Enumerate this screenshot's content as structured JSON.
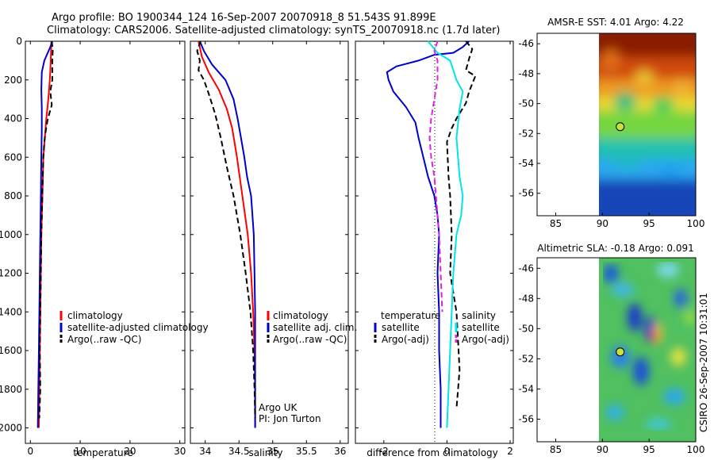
{
  "header": {
    "line1": "Argo profile: BO 1900344_124 16-Sep-2007 20070918_8 51.543S 91.899E",
    "line2": "Climatology: CARS2006. Satellite-adjusted climatology: synTS_20070918.nc (1.7d later)"
  },
  "side_stamp": "CSIRO 26-Sep-2007 10:31:01",
  "colors": {
    "climatology": "#ff0000",
    "satellite": "#0000cc",
    "argo": "#000000",
    "sat_salinity": "#00e5e5",
    "argo_adj_sal": "#e020e0"
  },
  "chart_data": [
    {
      "type": "line",
      "id": "temperature",
      "xlabel": "temperature",
      "ylabel": "",
      "xlim": [
        -1,
        31
      ],
      "ylim": [
        0,
        2080
      ],
      "xticks": [
        0,
        10,
        20,
        30
      ],
      "yticks": [
        0,
        200,
        400,
        600,
        800,
        1000,
        1200,
        1400,
        1600,
        1800,
        2000
      ],
      "legend": [
        "climatology",
        "satellite-adjusted climatology",
        "Argo(..raw -QC)"
      ],
      "series": [
        {
          "name": "climatology",
          "color": "#ff0000",
          "dash": false,
          "points": [
            [
              4.2,
              0
            ],
            [
              4.1,
              100
            ],
            [
              3.9,
              200
            ],
            [
              3.6,
              300
            ],
            [
              3.2,
              400
            ],
            [
              2.9,
              500
            ],
            [
              2.6,
              600
            ],
            [
              2.4,
              800
            ],
            [
              2.2,
              1000
            ],
            [
              2.1,
              1200
            ],
            [
              2.0,
              1400
            ],
            [
              1.9,
              1600
            ],
            [
              1.8,
              1800
            ],
            [
              1.7,
              2000
            ]
          ]
        },
        {
          "name": "satellite-adjusted climatology",
          "color": "#0000cc",
          "dash": false,
          "points": [
            [
              4.4,
              0
            ],
            [
              4.0,
              30
            ],
            [
              2.8,
              100
            ],
            [
              2.3,
              160
            ],
            [
              2.2,
              250
            ],
            [
              2.3,
              350
            ],
            [
              2.3,
              450
            ],
            [
              2.2,
              600
            ],
            [
              2.1,
              800
            ],
            [
              2.0,
              1000
            ],
            [
              1.9,
              1200
            ],
            [
              1.8,
              1400
            ],
            [
              1.7,
              1600
            ],
            [
              1.6,
              1800
            ],
            [
              1.5,
              2000
            ]
          ]
        },
        {
          "name": "Argo(..raw -QC)",
          "color": "#000000",
          "dash": true,
          "points": [
            [
              4.3,
              0
            ],
            [
              4.5,
              50
            ],
            [
              4.4,
              100
            ],
            [
              4.4,
              200
            ],
            [
              4.0,
              260
            ],
            [
              4.3,
              330
            ],
            [
              3.5,
              400
            ],
            [
              3.1,
              460
            ],
            [
              2.8,
              520
            ],
            [
              2.6,
              600
            ],
            [
              2.4,
              800
            ],
            [
              2.2,
              1000
            ],
            [
              2.1,
              1200
            ],
            [
              2.0,
              1400
            ],
            [
              1.9,
              1600
            ],
            [
              2.0,
              1800
            ],
            [
              1.8,
              1950
            ]
          ]
        }
      ]
    },
    {
      "type": "line",
      "id": "salinity",
      "xlabel": "salinity",
      "ylabel": "",
      "xlim": [
        33.78,
        36.12
      ],
      "ylim": [
        0,
        2080
      ],
      "xticks": [
        34,
        34.5,
        35,
        35.5,
        36
      ],
      "yticks": [
        0,
        200,
        400,
        600,
        800,
        1000,
        1200,
        1400,
        1600,
        1800,
        2000
      ],
      "legend": [
        "climatology",
        "satellite adj. clim.",
        "Argo(..raw -QC)"
      ],
      "series": [
        {
          "name": "climatology",
          "color": "#ff0000",
          "dash": false,
          "points": [
            [
              33.9,
              0
            ],
            [
              33.95,
              80
            ],
            [
              34.05,
              160
            ],
            [
              34.2,
              250
            ],
            [
              34.32,
              350
            ],
            [
              34.4,
              450
            ],
            [
              34.47,
              600
            ],
            [
              34.55,
              800
            ],
            [
              34.63,
              1000
            ],
            [
              34.68,
              1200
            ],
            [
              34.71,
              1400
            ],
            [
              34.73,
              1600
            ],
            [
              34.74,
              1800
            ],
            [
              34.74,
              2000
            ]
          ]
        },
        {
          "name": "satellite adj. clim.",
          "color": "#0000cc",
          "dash": false,
          "points": [
            [
              33.92,
              0
            ],
            [
              33.98,
              50
            ],
            [
              34.1,
              120
            ],
            [
              34.3,
              200
            ],
            [
              34.42,
              300
            ],
            [
              34.48,
              400
            ],
            [
              34.53,
              500
            ],
            [
              34.58,
              600
            ],
            [
              34.62,
              700
            ],
            [
              34.68,
              800
            ],
            [
              34.7,
              900
            ],
            [
              34.72,
              1000
            ],
            [
              34.73,
              1200
            ],
            [
              34.74,
              1400
            ],
            [
              34.74,
              1600
            ],
            [
              34.74,
              1800
            ],
            [
              34.74,
              2000
            ]
          ]
        },
        {
          "name": "Argo(..raw -QC)",
          "color": "#000000",
          "dash": true,
          "points": [
            [
              33.93,
              0
            ],
            [
              33.88,
              50
            ],
            [
              33.92,
              100
            ],
            [
              33.9,
              150
            ],
            [
              33.98,
              200
            ],
            [
              34.05,
              270
            ],
            [
              34.15,
              380
            ],
            [
              34.23,
              500
            ],
            [
              34.32,
              650
            ],
            [
              34.42,
              800
            ],
            [
              34.52,
              1000
            ],
            [
              34.6,
              1200
            ],
            [
              34.67,
              1400
            ],
            [
              34.71,
              1600
            ],
            [
              34.73,
              1800
            ],
            [
              34.74,
              1950
            ]
          ]
        }
      ]
    },
    {
      "type": "line",
      "id": "difference",
      "xlabel": "difference from climatology",
      "ylabel": "",
      "xlim": [
        -2.9,
        2.1
      ],
      "ylim": [
        0,
        2080
      ],
      "xticks": [
        -2,
        0,
        2
      ],
      "yticks": [
        0,
        200,
        400,
        600,
        800,
        1000,
        1200,
        1400,
        1600,
        1800,
        2000
      ],
      "legend_groups": [
        "temperature",
        "salinity"
      ],
      "legend": [
        "satellite",
        "Argo(-adj)",
        "satellite",
        "Argo(-adj)"
      ],
      "series": [
        {
          "name": "temperature satellite",
          "color": "#0000cc",
          "dash": false,
          "points": [
            [
              0.7,
              0
            ],
            [
              0.5,
              30
            ],
            [
              0.2,
              60
            ],
            [
              -0.4,
              70
            ],
            [
              -0.9,
              100
            ],
            [
              -1.6,
              130
            ],
            [
              -1.9,
              160
            ],
            [
              -1.85,
              200
            ],
            [
              -1.7,
              260
            ],
            [
              -1.3,
              340
            ],
            [
              -1.0,
              420
            ],
            [
              -0.9,
              500
            ],
            [
              -0.75,
              600
            ],
            [
              -0.6,
              700
            ],
            [
              -0.4,
              800
            ],
            [
              -0.3,
              900
            ],
            [
              -0.25,
              1000
            ],
            [
              -0.3,
              1200
            ],
            [
              -0.25,
              1400
            ],
            [
              -0.25,
              1600
            ],
            [
              -0.2,
              1800
            ],
            [
              -0.2,
              2000
            ]
          ]
        },
        {
          "name": "temperature Argo(-adj)",
          "color": "#000000",
          "dash": true,
          "points": [
            [
              0.6,
              0
            ],
            [
              0.8,
              40
            ],
            [
              0.7,
              90
            ],
            [
              0.6,
              150
            ],
            [
              0.9,
              180
            ],
            [
              0.7,
              260
            ],
            [
              0.6,
              320
            ],
            [
              0.3,
              400
            ],
            [
              0.15,
              450
            ],
            [
              0.0,
              520
            ],
            [
              0.05,
              700
            ],
            [
              0.1,
              800
            ],
            [
              0.15,
              1000
            ],
            [
              0.1,
              1200
            ],
            [
              0.3,
              1400
            ],
            [
              0.35,
              1550
            ],
            [
              0.4,
              1700
            ],
            [
              0.35,
              1800
            ],
            [
              0.3,
              1900
            ]
          ]
        },
        {
          "name": "salinity satellite",
          "color": "#00e5e5",
          "dash": false,
          "points": [
            [
              -0.6,
              0
            ],
            [
              -0.5,
              20
            ],
            [
              -0.3,
              60
            ],
            [
              0.1,
              100
            ],
            [
              0.3,
              200
            ],
            [
              0.5,
              260
            ],
            [
              0.4,
              350
            ],
            [
              0.3,
              500
            ],
            [
              0.4,
              700
            ],
            [
              0.5,
              800
            ],
            [
              0.45,
              900
            ],
            [
              0.3,
              1000
            ],
            [
              0.2,
              1200
            ],
            [
              0.15,
              1400
            ],
            [
              0.1,
              1600
            ],
            [
              0.05,
              1800
            ],
            [
              0.0,
              2000
            ]
          ]
        },
        {
          "name": "salinity Argo(-adj)",
          "color": "#e020e0",
          "dash": true,
          "points": [
            [
              -0.3,
              0
            ],
            [
              -0.4,
              50
            ],
            [
              -0.3,
              100
            ],
            [
              -0.3,
              200
            ],
            [
              -0.4,
              300
            ],
            [
              -0.5,
              400
            ],
            [
              -0.55,
              500
            ],
            [
              -0.5,
              600
            ],
            [
              -0.4,
              700
            ],
            [
              -0.35,
              800
            ],
            [
              -0.3,
              900
            ],
            [
              -0.25,
              1000
            ],
            [
              -0.2,
              1200
            ],
            [
              -0.15,
              1400
            ]
          ]
        }
      ]
    },
    {
      "type": "heatmap",
      "id": "sst_map",
      "title": "AMSR-E SST: 4.01 Argo: 4.22",
      "xlim": [
        83,
        100
      ],
      "ylim": [
        -57.5,
        -45.3
      ],
      "xticks": [
        85,
        90,
        95,
        100
      ],
      "yticks": [
        -46,
        -48,
        -50,
        -52,
        -54,
        -56
      ],
      "data_lon_range": [
        90,
        100
      ],
      "argo_position": {
        "lon": 91.899,
        "lat": -51.543
      }
    },
    {
      "type": "heatmap",
      "id": "sla_map",
      "title": "Altimetric SLA: -0.18 Argo: 0.091",
      "xlim": [
        83,
        100
      ],
      "ylim": [
        -57.5,
        -45.3
      ],
      "xticks": [
        85,
        90,
        95,
        100
      ],
      "yticks": [
        -46,
        -48,
        -50,
        -52,
        -54,
        -56
      ],
      "data_lon_range": [
        90,
        100
      ],
      "argo_position": {
        "lon": 91.899,
        "lat": -51.543
      }
    }
  ],
  "annotations": {
    "float_owner": "Argo UK",
    "pi": "PI: Jon Turton"
  }
}
